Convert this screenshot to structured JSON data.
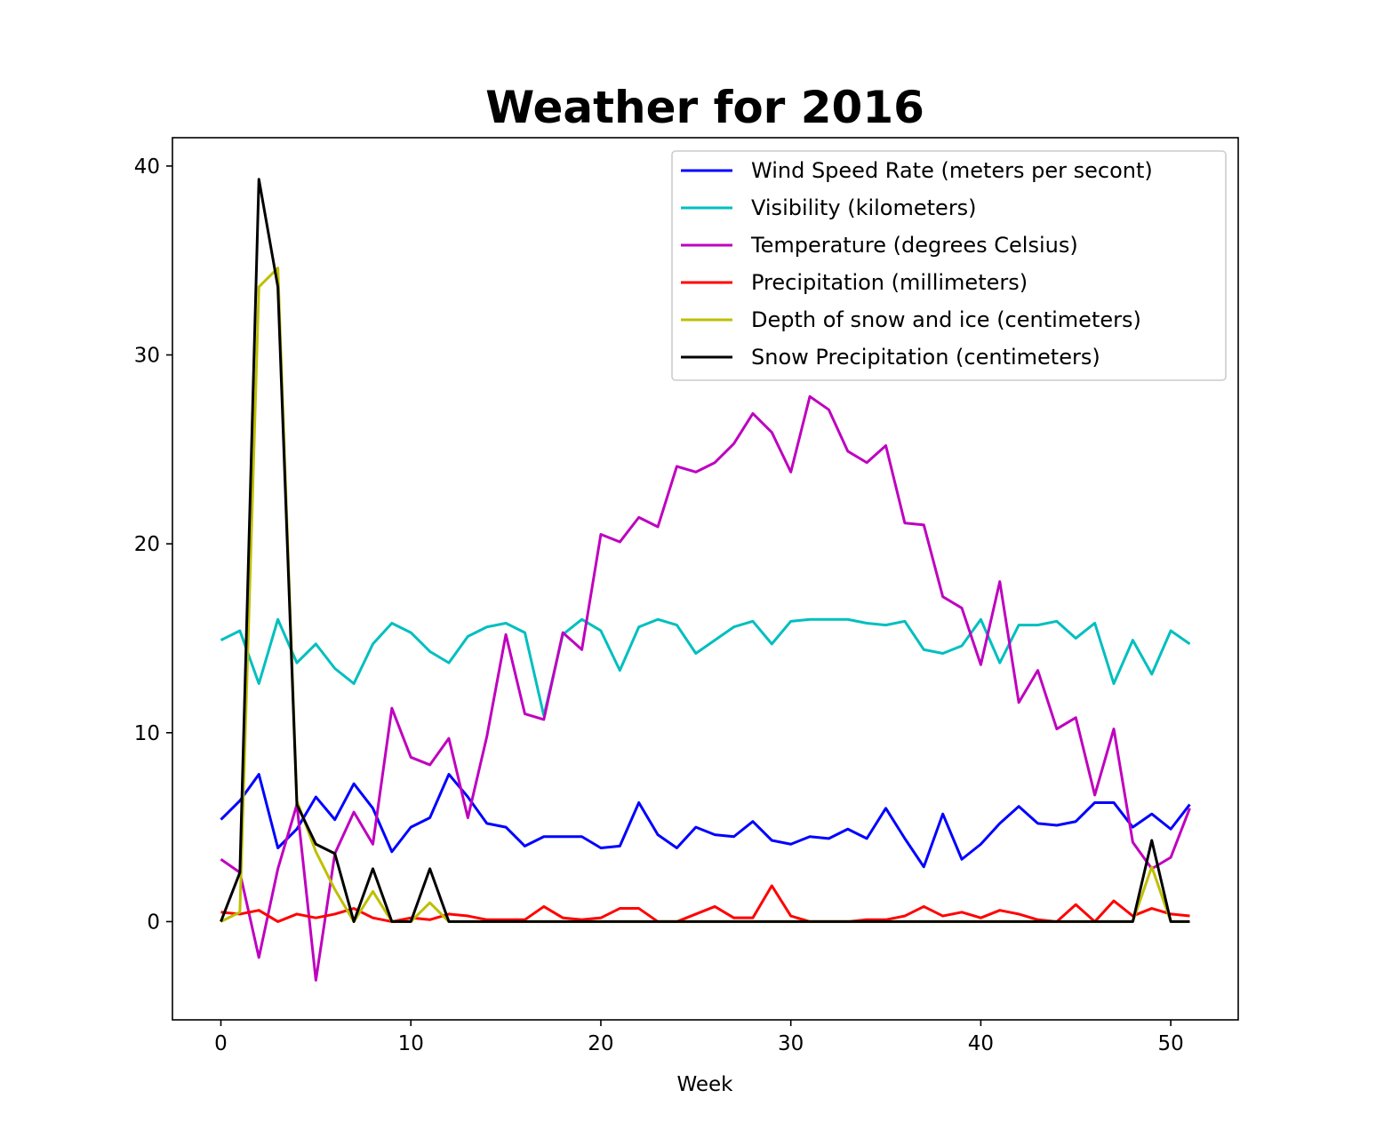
{
  "chart_data": {
    "type": "line",
    "title": "Weather for 2016",
    "xlabel": "Week",
    "ylabel": "",
    "xlim": [
      -2.55,
      53.55
    ],
    "ylim": [
      -5.2,
      41.5
    ],
    "xticks": [
      0,
      10,
      20,
      30,
      40,
      50
    ],
    "yticks": [
      0,
      10,
      20,
      30,
      40
    ],
    "grid": false,
    "legend": "top-right",
    "series": [
      {
        "name": "Wind Speed Rate (meters per secont)",
        "color": "#0000ff",
        "x": [
          0,
          1,
          2,
          3,
          4,
          5,
          6,
          7,
          8,
          9,
          10,
          11,
          12,
          13,
          14,
          15,
          16,
          17,
          18,
          19,
          20,
          21,
          22,
          23,
          24,
          25,
          26,
          27,
          28,
          29,
          30,
          31,
          32,
          33,
          34,
          35,
          36,
          37,
          38,
          39,
          40,
          41,
          42,
          43,
          44,
          45,
          46,
          47,
          48,
          49,
          50,
          51
        ],
        "values": [
          5.4,
          6.4,
          7.8,
          3.9,
          4.9,
          6.6,
          5.4,
          7.3,
          6.0,
          3.7,
          5.0,
          5.5,
          7.8,
          6.6,
          5.2,
          5.0,
          4.0,
          4.5,
          4.5,
          4.5,
          3.9,
          4.0,
          6.3,
          4.6,
          3.9,
          5.0,
          4.6,
          4.5,
          5.3,
          4.3,
          4.1,
          4.5,
          4.4,
          4.9,
          4.4,
          6.0,
          4.4,
          2.9,
          5.7,
          3.3,
          4.1,
          5.2,
          6.1,
          5.2,
          5.1,
          5.3,
          6.3,
          6.3,
          5.0,
          5.7,
          4.9,
          6.2
        ]
      },
      {
        "name": "Visibility (kilometers)",
        "color": "#00bfbf",
        "x": [
          0,
          1,
          2,
          3,
          4,
          5,
          6,
          7,
          8,
          9,
          10,
          11,
          12,
          13,
          14,
          15,
          16,
          17,
          18,
          19,
          20,
          21,
          22,
          23,
          24,
          25,
          26,
          27,
          28,
          29,
          30,
          31,
          32,
          33,
          34,
          35,
          36,
          37,
          38,
          39,
          40,
          41,
          42,
          43,
          44,
          45,
          46,
          47,
          48,
          49,
          50,
          51
        ],
        "values": [
          14.9,
          15.4,
          12.6,
          16.0,
          13.7,
          14.7,
          13.4,
          12.6,
          14.7,
          15.8,
          15.3,
          14.3,
          13.7,
          15.1,
          15.6,
          15.8,
          15.3,
          10.9,
          15.2,
          16.0,
          15.4,
          13.3,
          15.6,
          16.0,
          15.7,
          14.2,
          14.9,
          15.6,
          15.9,
          14.7,
          15.9,
          16.0,
          16.0,
          16.0,
          15.8,
          15.7,
          15.9,
          14.4,
          14.2,
          14.6,
          16.0,
          13.7,
          15.7,
          15.7,
          15.9,
          15.0,
          15.8,
          12.6,
          14.9,
          13.1,
          15.4,
          14.7
        ]
      },
      {
        "name": "Temperature (degrees Celsius)",
        "color": "#bf00bf",
        "x": [
          0,
          1,
          2,
          3,
          4,
          5,
          6,
          7,
          8,
          9,
          10,
          11,
          12,
          13,
          14,
          15,
          16,
          17,
          18,
          19,
          20,
          21,
          22,
          23,
          24,
          25,
          26,
          27,
          28,
          29,
          30,
          31,
          32,
          33,
          34,
          35,
          36,
          37,
          38,
          39,
          40,
          41,
          42,
          43,
          44,
          45,
          46,
          47,
          48,
          49,
          50,
          51
        ],
        "values": [
          3.3,
          2.6,
          -1.9,
          2.8,
          6.2,
          -3.1,
          3.6,
          5.8,
          4.1,
          11.3,
          8.7,
          8.3,
          9.7,
          5.5,
          9.8,
          15.2,
          11.0,
          10.7,
          15.3,
          14.4,
          20.5,
          20.1,
          21.4,
          20.9,
          24.1,
          23.8,
          24.3,
          25.3,
          26.9,
          25.9,
          23.8,
          27.8,
          27.1,
          24.9,
          24.3,
          25.2,
          21.1,
          21.0,
          17.2,
          16.6,
          13.6,
          18.0,
          11.6,
          13.3,
          10.2,
          10.8,
          6.7,
          10.2,
          4.2,
          2.8,
          3.4,
          6.0
        ]
      },
      {
        "name": "Precipitation (millimeters)",
        "color": "#ff0000",
        "x": [
          0,
          1,
          2,
          3,
          4,
          5,
          6,
          7,
          8,
          9,
          10,
          11,
          12,
          13,
          14,
          15,
          16,
          17,
          18,
          19,
          20,
          21,
          22,
          23,
          24,
          25,
          26,
          27,
          28,
          29,
          30,
          31,
          32,
          33,
          34,
          35,
          36,
          37,
          38,
          39,
          40,
          41,
          42,
          43,
          44,
          45,
          46,
          47,
          48,
          49,
          50,
          51
        ],
        "values": [
          0.5,
          0.4,
          0.6,
          0.0,
          0.4,
          0.2,
          0.4,
          0.7,
          0.2,
          0.0,
          0.2,
          0.1,
          0.4,
          0.3,
          0.1,
          0.1,
          0.1,
          0.8,
          0.2,
          0.1,
          0.2,
          0.7,
          0.7,
          0.0,
          0.0,
          0.4,
          0.8,
          0.2,
          0.2,
          1.9,
          0.3,
          0.0,
          0.0,
          0.0,
          0.1,
          0.1,
          0.3,
          0.8,
          0.3,
          0.5,
          0.2,
          0.6,
          0.4,
          0.1,
          0.0,
          0.9,
          0.0,
          1.1,
          0.3,
          0.7,
          0.4,
          0.3
        ]
      },
      {
        "name": "Depth of snow and ice (centimeters)",
        "color": "#bfbf00",
        "x": [
          0,
          1,
          2,
          3,
          4,
          5,
          6,
          7,
          8,
          9,
          10,
          11,
          12,
          13,
          14,
          15,
          16,
          17,
          18,
          19,
          20,
          21,
          22,
          23,
          24,
          25,
          26,
          27,
          28,
          29,
          30,
          31,
          32,
          33,
          34,
          35,
          36,
          37,
          38,
          39,
          40,
          41,
          42,
          43,
          44,
          45,
          46,
          47,
          48,
          49,
          50,
          51
        ],
        "values": [
          0.0,
          0.5,
          33.6,
          34.6,
          6.4,
          3.7,
          1.7,
          0.0,
          1.6,
          0.0,
          0.0,
          1.0,
          0.0,
          0,
          0,
          0,
          0,
          0,
          0,
          0,
          0,
          0,
          0,
          0,
          0,
          0,
          0,
          0,
          0,
          0,
          0,
          0,
          0,
          0,
          0,
          0,
          0,
          0,
          0,
          0,
          0,
          0,
          0,
          0,
          0,
          0,
          0,
          0,
          0,
          2.9,
          0.0,
          0.0
        ]
      },
      {
        "name": "Snow Precipitation (centimeters)",
        "color": "#000000",
        "x": [
          0,
          1,
          2,
          3,
          4,
          5,
          6,
          7,
          8,
          9,
          10,
          11,
          12,
          13,
          14,
          15,
          16,
          17,
          18,
          19,
          20,
          21,
          22,
          23,
          24,
          25,
          26,
          27,
          28,
          29,
          30,
          31,
          32,
          33,
          34,
          35,
          36,
          37,
          38,
          39,
          40,
          41,
          42,
          43,
          44,
          45,
          46,
          47,
          48,
          49,
          50,
          51
        ],
        "values": [
          0.0,
          2.6,
          39.3,
          33.6,
          6.2,
          4.1,
          3.6,
          0.0,
          2.8,
          0.0,
          0.0,
          2.8,
          0.0,
          0,
          0,
          0,
          0,
          0,
          0,
          0,
          0,
          0,
          0,
          0,
          0,
          0,
          0,
          0,
          0,
          0,
          0,
          0,
          0,
          0,
          0,
          0,
          0,
          0,
          0,
          0,
          0,
          0,
          0,
          0,
          0,
          0,
          0,
          0,
          0,
          4.3,
          0.0,
          0.0
        ]
      }
    ]
  }
}
